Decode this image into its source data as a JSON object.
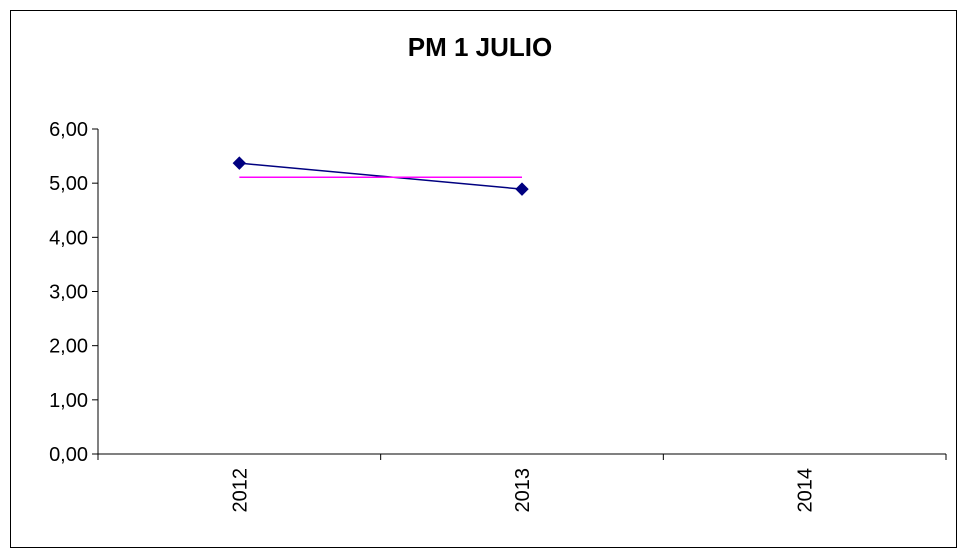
{
  "chart_data": {
    "type": "line",
    "title": "PM 1 JULIO",
    "categories": [
      "2012",
      "2013",
      "2014"
    ],
    "yticks": [
      "0,00",
      "1,00",
      "2,00",
      "3,00",
      "4,00",
      "5,00",
      "6,00"
    ],
    "ylim": [
      0,
      6
    ],
    "series": [
      {
        "values": [
          5.37,
          4.89,
          null
        ],
        "color": "#000080",
        "marker": "diamond"
      },
      {
        "values": [
          5.11,
          5.11,
          null
        ],
        "color": "#FF00FF",
        "marker": "none"
      }
    ],
    "grid": false,
    "legend": "none"
  }
}
